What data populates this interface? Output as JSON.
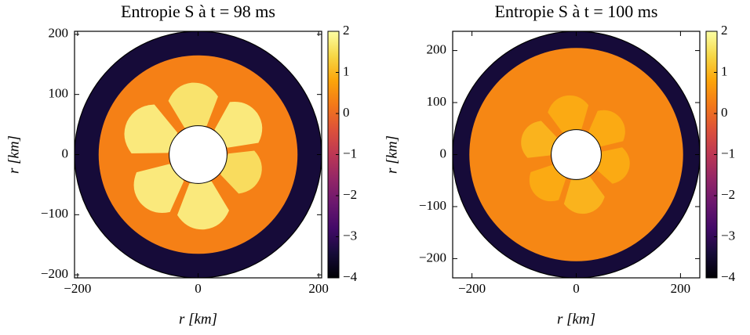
{
  "chart_data": [
    {
      "type": "heatmap",
      "title": "Entropie S à t = 98 ms",
      "xlabel": "r [km]",
      "ylabel": "r [km]",
      "xlim": [
        -205,
        205
      ],
      "ylim": [
        -205,
        205
      ],
      "xticks": [
        {
          "value": -200,
          "label": "−200"
        },
        0,
        200
      ],
      "yticks": [
        {
          "value": -200,
          "label": "−200"
        },
        {
          "value": -100,
          "label": "−100"
        },
        0,
        100,
        200
      ],
      "colormap": "inferno",
      "clim": [
        -4,
        2
      ],
      "cticks": [
        {
          "value": -4,
          "label": "−4"
        },
        {
          "value": -3,
          "label": "−3"
        },
        {
          "value": -2,
          "label": "−2"
        },
        {
          "value": -1,
          "label": "−1"
        },
        0,
        1,
        2
      ],
      "rings": [
        {
          "r": [
            165,
            205
          ],
          "value": -3.4
        },
        {
          "r": [
            48,
            165
          ],
          "value": 0.3
        }
      ],
      "plumes": [
        {
          "angle": 155,
          "r": [
            50,
            130
          ],
          "value": 1.8
        },
        {
          "angle": 95,
          "r": [
            50,
            120
          ],
          "value": 1.7
        },
        {
          "angle": 35,
          "r": [
            50,
            120
          ],
          "value": 1.8
        },
        {
          "angle": -20,
          "r": [
            50,
            110
          ],
          "value": 1.6
        },
        {
          "angle": -85,
          "r": [
            50,
            125
          ],
          "value": 1.8
        },
        {
          "angle": -140,
          "r": [
            50,
            125
          ],
          "value": 1.8
        }
      ]
    },
    {
      "type": "heatmap",
      "title": "Entropie S à t = 100 ms",
      "xlabel": "r [km]",
      "ylabel": "r [km]",
      "xlim": [
        -237,
        237
      ],
      "ylim": [
        -237,
        237
      ],
      "xticks": [
        {
          "value": -200,
          "label": "−200"
        },
        0,
        200
      ],
      "yticks": [
        {
          "value": -200,
          "label": "−200"
        },
        {
          "value": -100,
          "label": "−100"
        },
        0,
        100,
        200
      ],
      "colormap": "inferno",
      "clim": [
        -4,
        2
      ],
      "cticks": [
        {
          "value": -4,
          "label": "−4"
        },
        {
          "value": -3,
          "label": "−3"
        },
        {
          "value": -2,
          "label": "−2"
        },
        {
          "value": -1,
          "label": "−1"
        },
        0,
        1,
        2
      ],
      "rings": [
        {
          "r": [
            205,
            237
          ],
          "value": -3.4
        },
        {
          "r": [
            48,
            205
          ],
          "value": 0.4
        }
      ],
      "plumes": [
        {
          "angle": 160,
          "r": [
            50,
            110
          ],
          "value": 1.0
        },
        {
          "angle": 100,
          "r": [
            50,
            115
          ],
          "value": 0.9
        },
        {
          "angle": 40,
          "r": [
            50,
            110
          ],
          "value": 0.9
        },
        {
          "angle": -15,
          "r": [
            50,
            105
          ],
          "value": 0.9
        },
        {
          "angle": -80,
          "r": [
            50,
            115
          ],
          "value": 1.0
        },
        {
          "angle": -135,
          "r": [
            50,
            110
          ],
          "value": 0.9
        }
      ]
    }
  ]
}
